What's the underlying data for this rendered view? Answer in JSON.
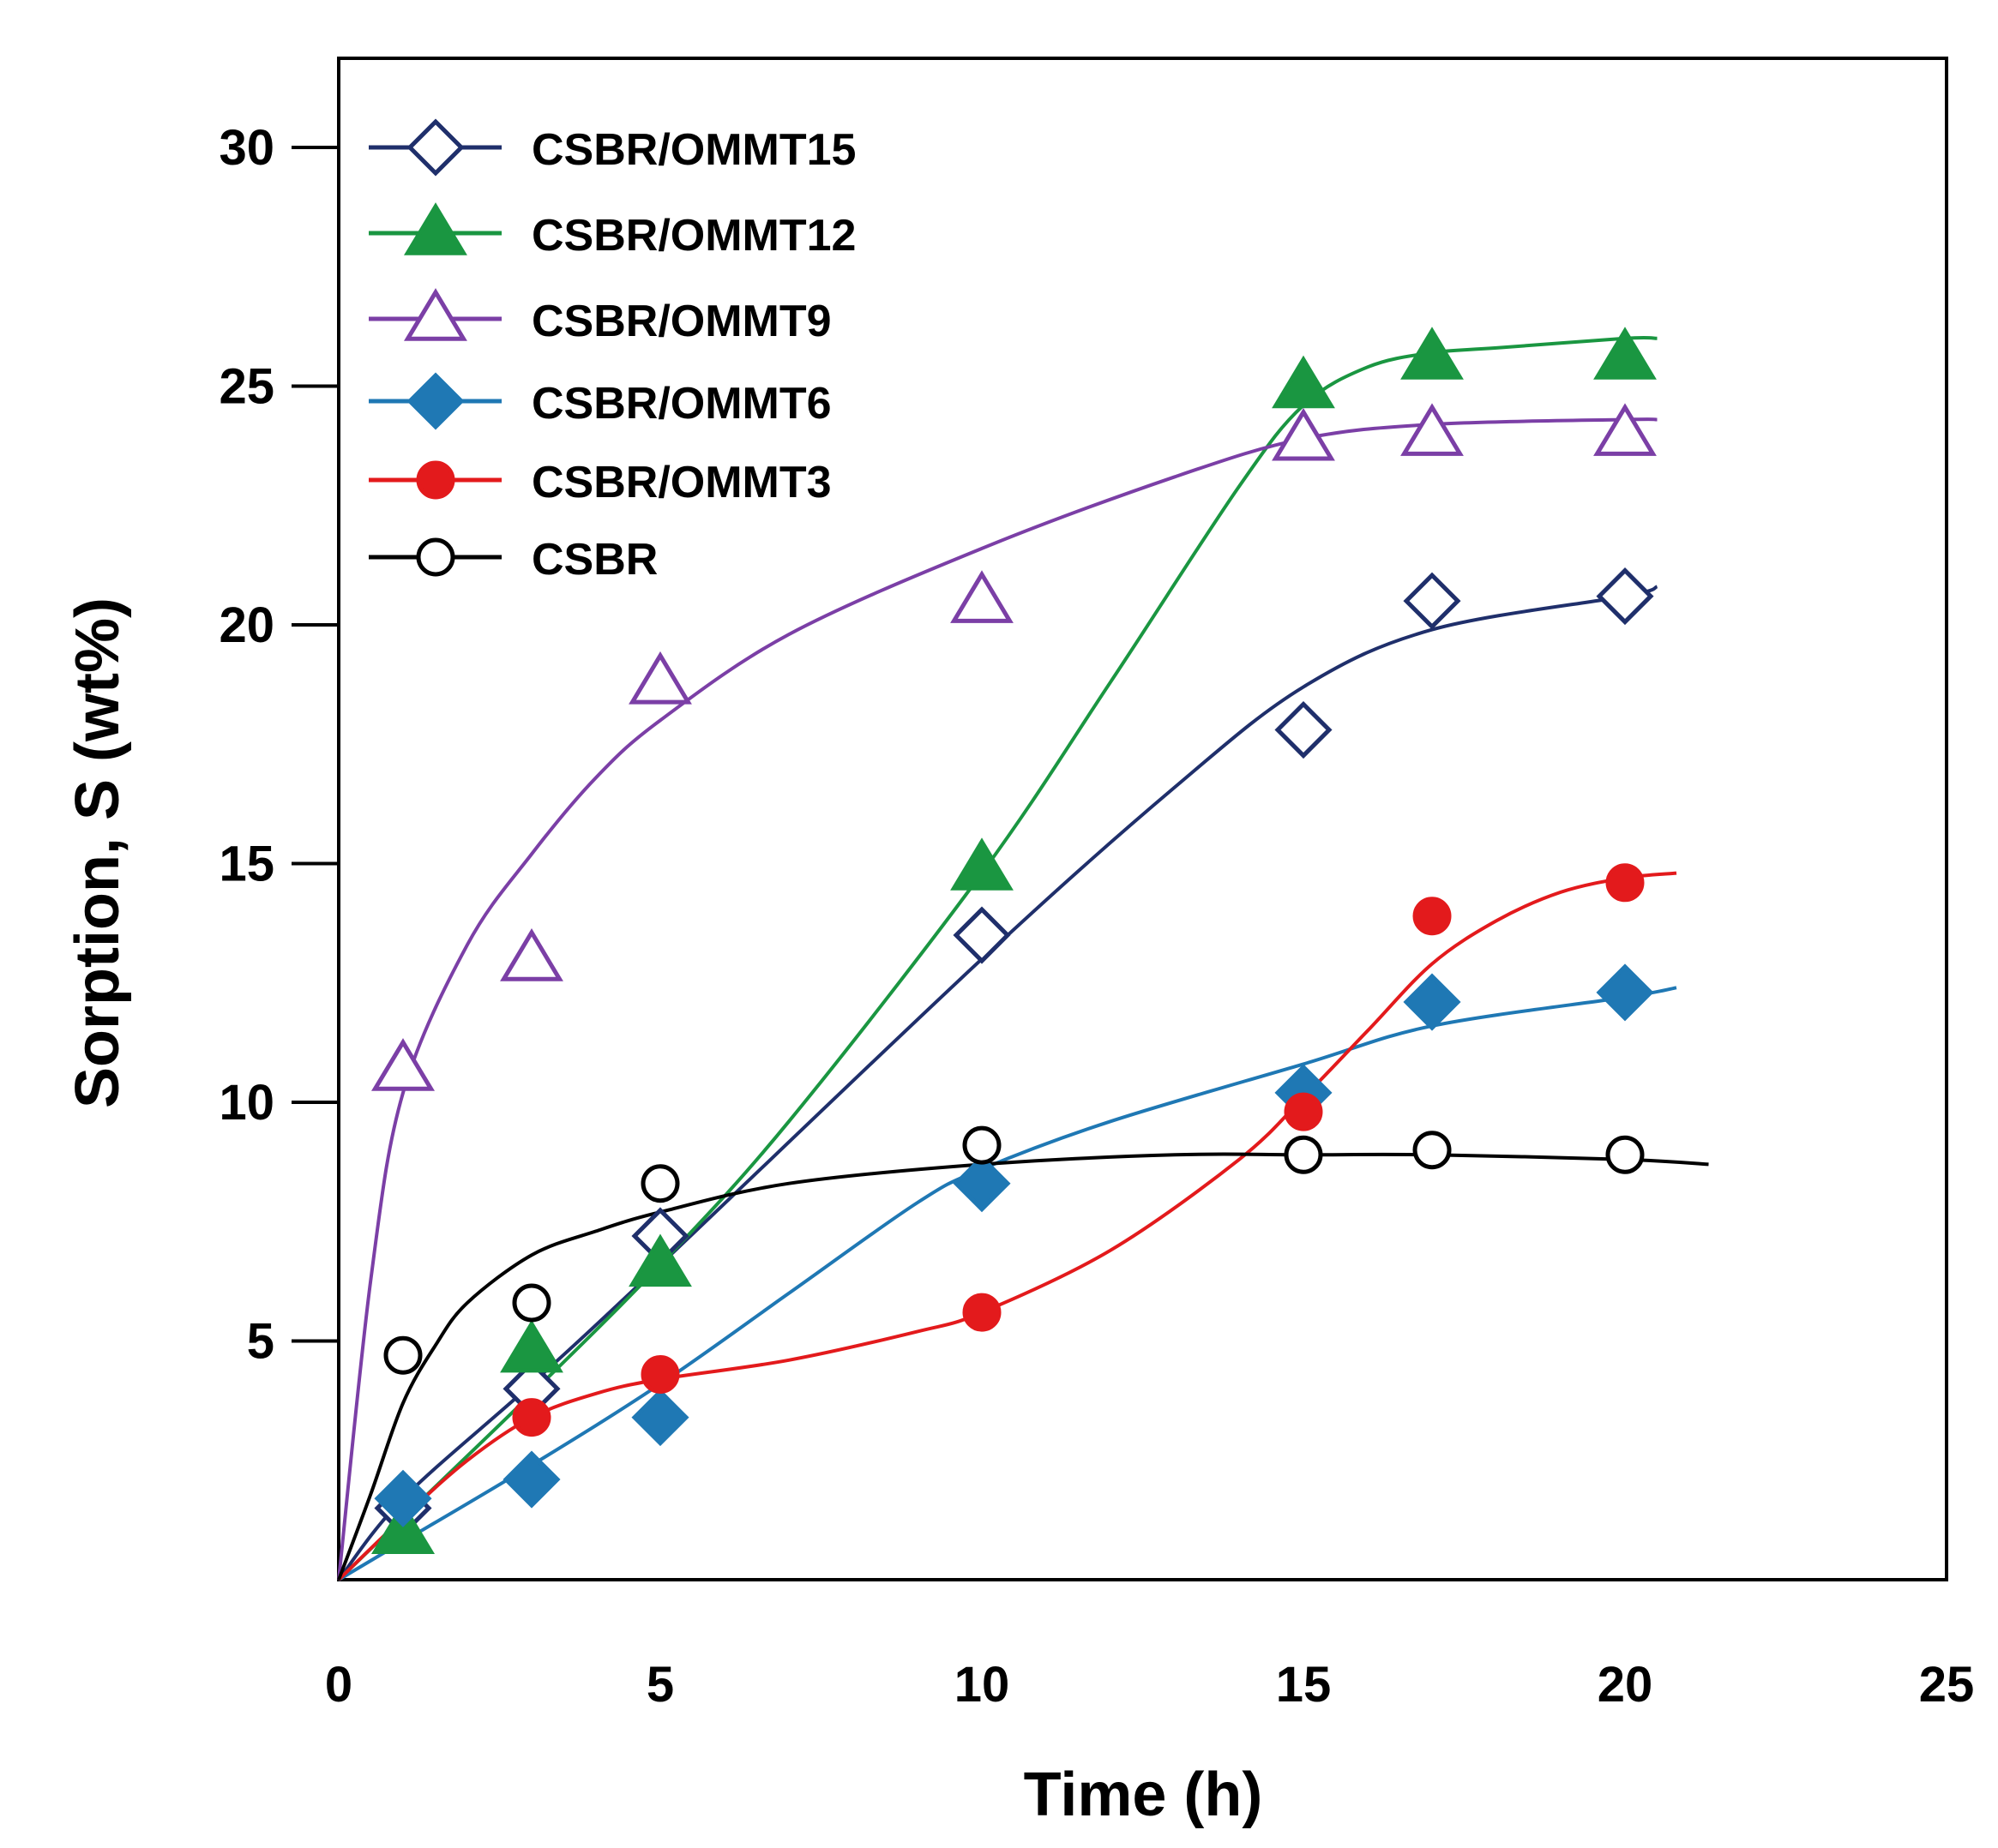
{
  "chart_data": {
    "type": "scatter",
    "title": "",
    "xlabel": "Time (h)",
    "ylabel": "Sorption, S (wt%)",
    "xlim": [
      0,
      25
    ],
    "ylim": [
      0,
      30
    ],
    "x_ticks": [
      0,
      5,
      10,
      15,
      20,
      25
    ],
    "y_ticks": [
      5,
      10,
      15,
      20,
      25,
      30
    ],
    "x_tick_labels": [
      "0",
      "5",
      "10",
      "15",
      "20",
      "25"
    ],
    "y_tick_labels": [
      "5",
      "10",
      "15",
      "20",
      "25",
      "30"
    ],
    "grid": false,
    "legend_position": "top-left",
    "series": [
      {
        "name": "CSBR/OMMT15",
        "color": "#1f2f6b",
        "marker": "diamond-open",
        "x": [
          1,
          3,
          5,
          10,
          15,
          17,
          20
        ],
        "y": [
          1.5,
          4,
          7.2,
          13.5,
          17.8,
          20.5,
          20.6
        ],
        "fit": [
          [
            0,
            0
          ],
          [
            1,
            1.7
          ],
          [
            3,
            4.1
          ],
          [
            5,
            6.6
          ],
          [
            10,
            13
          ],
          [
            13,
            16.6
          ],
          [
            15,
            18.7
          ],
          [
            17,
            19.9
          ],
          [
            20,
            20.6
          ],
          [
            20.5,
            20.8
          ]
        ]
      },
      {
        "name": "CSBR/OMMT12",
        "color": "#1a9641",
        "marker": "triangle-filled",
        "x": [
          1,
          3,
          5,
          10,
          15,
          17,
          20
        ],
        "y": [
          1,
          4.8,
          6.6,
          14.9,
          25,
          25.6,
          25.6
        ],
        "fit": [
          [
            0,
            0
          ],
          [
            1,
            1.3
          ],
          [
            3,
            3.9
          ],
          [
            5,
            6.6
          ],
          [
            7,
            9.6
          ],
          [
            10,
            14.8
          ],
          [
            12,
            18.8
          ],
          [
            14,
            22.9
          ],
          [
            15,
            24.6
          ],
          [
            16,
            25.4
          ],
          [
            17,
            25.7
          ],
          [
            18,
            25.8
          ],
          [
            20,
            26
          ],
          [
            20.5,
            26
          ]
        ]
      },
      {
        "name": "CSBR/OMMT9",
        "color": "#7b3fa6",
        "marker": "triangle-open",
        "x": [
          1,
          3,
          5,
          10,
          15,
          17,
          20
        ],
        "y": [
          10.7,
          13,
          18.8,
          20.5,
          23.9,
          24,
          24
        ],
        "fit": [
          [
            0,
            0
          ],
          [
            0.5,
            6.3
          ],
          [
            1,
            10.2
          ],
          [
            2,
            13.3
          ],
          [
            3,
            15.2
          ],
          [
            4,
            16.8
          ],
          [
            5,
            18
          ],
          [
            7,
            19.8
          ],
          [
            10,
            21.6
          ],
          [
            13,
            23.1
          ],
          [
            15,
            23.9
          ],
          [
            17,
            24.2
          ],
          [
            20,
            24.3
          ],
          [
            20.5,
            24.3
          ]
        ]
      },
      {
        "name": "CSBR/OMMT6",
        "color": "#1f78b4",
        "marker": "diamond-filled",
        "x": [
          1,
          3,
          5,
          10,
          15,
          17,
          20
        ],
        "y": [
          1.7,
          2.1,
          3.4,
          8.3,
          10.2,
          12.1,
          12.3
        ],
        "fit": [
          [
            0,
            0
          ],
          [
            1,
            0.8
          ],
          [
            3,
            2.4
          ],
          [
            5,
            4.1
          ],
          [
            7,
            6
          ],
          [
            9,
            7.9
          ],
          [
            10,
            8.6
          ],
          [
            12,
            9.6
          ],
          [
            15,
            10.8
          ],
          [
            17,
            11.6
          ],
          [
            20,
            12.2
          ],
          [
            20.8,
            12.4
          ]
        ]
      },
      {
        "name": "CSBR/OMMT3",
        "color": "#e31a1c",
        "marker": "circle-filled",
        "x": [
          3,
          5,
          10,
          15,
          17,
          20
        ],
        "y": [
          3.4,
          4.3,
          5.6,
          9.8,
          13.9,
          14.6
        ],
        "fit": [
          [
            0,
            0
          ],
          [
            1,
            1.3
          ],
          [
            2,
            2.5
          ],
          [
            3,
            3.4
          ],
          [
            4,
            3.9
          ],
          [
            5,
            4.2
          ],
          [
            7,
            4.6
          ],
          [
            9,
            5.2
          ],
          [
            10,
            5.6
          ],
          [
            12,
            6.9
          ],
          [
            14,
            8.8
          ],
          [
            15,
            10.1
          ],
          [
            16,
            11.5
          ],
          [
            17,
            12.9
          ],
          [
            18,
            13.8
          ],
          [
            19,
            14.4
          ],
          [
            20,
            14.7
          ],
          [
            20.8,
            14.8
          ]
        ]
      },
      {
        "name": "CSBR",
        "color": "#000000",
        "marker": "circle-open",
        "x": [
          1,
          3,
          5,
          10,
          15,
          17,
          20
        ],
        "y": [
          4.7,
          5.8,
          8.3,
          9.1,
          8.9,
          9,
          8.9
        ],
        "fit": [
          [
            0,
            0
          ],
          [
            0.5,
            1.8
          ],
          [
            1,
            3.7
          ],
          [
            1.5,
            4.9
          ],
          [
            2,
            5.8
          ],
          [
            3,
            6.8
          ],
          [
            4,
            7.3
          ],
          [
            5,
            7.7
          ],
          [
            7,
            8.3
          ],
          [
            10,
            8.7
          ],
          [
            13,
            8.9
          ],
          [
            15,
            8.9
          ],
          [
            17,
            8.9
          ],
          [
            20,
            8.8
          ],
          [
            21.3,
            8.7
          ]
        ]
      }
    ]
  }
}
